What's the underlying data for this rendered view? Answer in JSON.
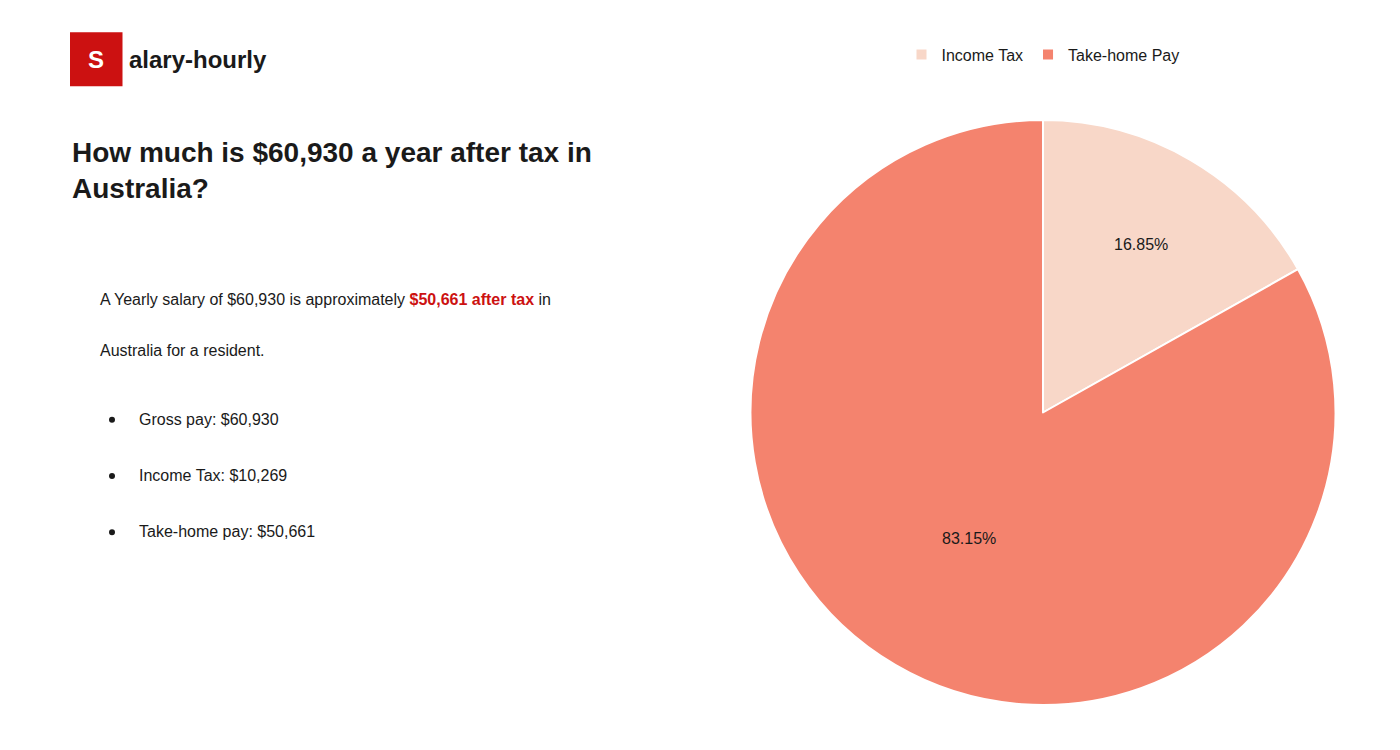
{
  "chart_data": {
    "type": "pie",
    "title": "How much is $60,930 a year after tax in\nAustralia?",
    "categories": [
      "Income Tax",
      "Take-home Pay"
    ],
    "values": [
      16.85,
      83.15
    ],
    "value_labels": [
      "16.85%",
      "83.15%"
    ],
    "colors": [
      "#f8d7c8",
      "#f4836e"
    ],
    "data_labels": true,
    "legend": "top",
    "annotations": [
      [
        {
          "text": "S",
          "color": "#cc1111"
        },
        "alary-hourly"
      ],
      [
        "A Yearly salary of $60,930 is approximately ",
        {
          "text": "$50,661 after tax",
          "color": "#cc1111"
        },
        " in"
      ],
      [
        "Australia for a resident."
      ],
      [
        "Gross pay: $60,930"
      ],
      [
        "Income Tax: $10,269"
      ],
      [
        "Take-home pay: $50,661"
      ]
    ]
  }
}
